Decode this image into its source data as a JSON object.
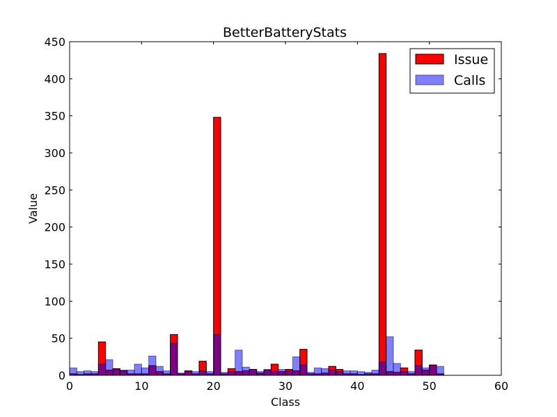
{
  "chart_data": {
    "type": "bar",
    "title": "BetterBatteryStats",
    "xlabel": "Class",
    "ylabel": "Value",
    "xlim": [
      0,
      60
    ],
    "ylim": [
      0,
      450
    ],
    "xticks": [
      "0",
      "10",
      "20",
      "30",
      "40",
      "50",
      "60"
    ],
    "yticks": [
      "0",
      "50",
      "100",
      "150",
      "200",
      "250",
      "300",
      "350",
      "400",
      "450"
    ],
    "legend_position": "top-right",
    "bar_width": 1,
    "series": [
      {
        "name": "Issue",
        "color": "#ff0000",
        "alpha": 1.0,
        "x": [
          0,
          1,
          2,
          3,
          4,
          5,
          6,
          7,
          8,
          9,
          10,
          11,
          12,
          13,
          14,
          15,
          16,
          17,
          18,
          19,
          20,
          21,
          22,
          23,
          24,
          25,
          26,
          27,
          28,
          29,
          30,
          31,
          32,
          33,
          34,
          35,
          36,
          37,
          38,
          39,
          40,
          41,
          42,
          43,
          44,
          45,
          46,
          47,
          48,
          49,
          50,
          51
        ],
        "values": [
          2,
          1,
          2,
          2,
          45,
          7,
          9,
          6,
          2,
          2,
          2,
          13,
          5,
          2,
          55,
          2,
          6,
          2,
          19,
          2,
          348,
          2,
          9,
          5,
          6,
          8,
          3,
          7,
          15,
          5,
          8,
          6,
          35,
          2,
          2,
          3,
          12,
          8,
          2,
          2,
          1,
          2,
          2,
          434,
          5,
          4,
          10,
          2,
          34,
          7,
          14,
          2
        ]
      },
      {
        "name": "Calls",
        "color": "#0000ff",
        "alpha": 0.5,
        "x": [
          0,
          1,
          2,
          3,
          4,
          5,
          6,
          7,
          8,
          9,
          10,
          11,
          12,
          13,
          14,
          15,
          16,
          17,
          18,
          19,
          20,
          21,
          22,
          23,
          24,
          25,
          26,
          27,
          28,
          29,
          30,
          31,
          32,
          33,
          34,
          35,
          36,
          37,
          38,
          39,
          40,
          41,
          42,
          43,
          44,
          45,
          46,
          47,
          48,
          49,
          50,
          51
        ],
        "values": [
          10,
          5,
          6,
          5,
          15,
          21,
          8,
          7,
          7,
          15,
          10,
          26,
          12,
          6,
          43,
          3,
          5,
          5,
          6,
          5,
          55,
          4,
          5,
          34,
          11,
          8,
          5,
          8,
          5,
          8,
          6,
          25,
          14,
          4,
          10,
          9,
          7,
          5,
          6,
          6,
          5,
          4,
          7,
          18,
          52,
          16,
          5,
          5,
          13,
          10,
          13,
          12
        ]
      }
    ]
  }
}
